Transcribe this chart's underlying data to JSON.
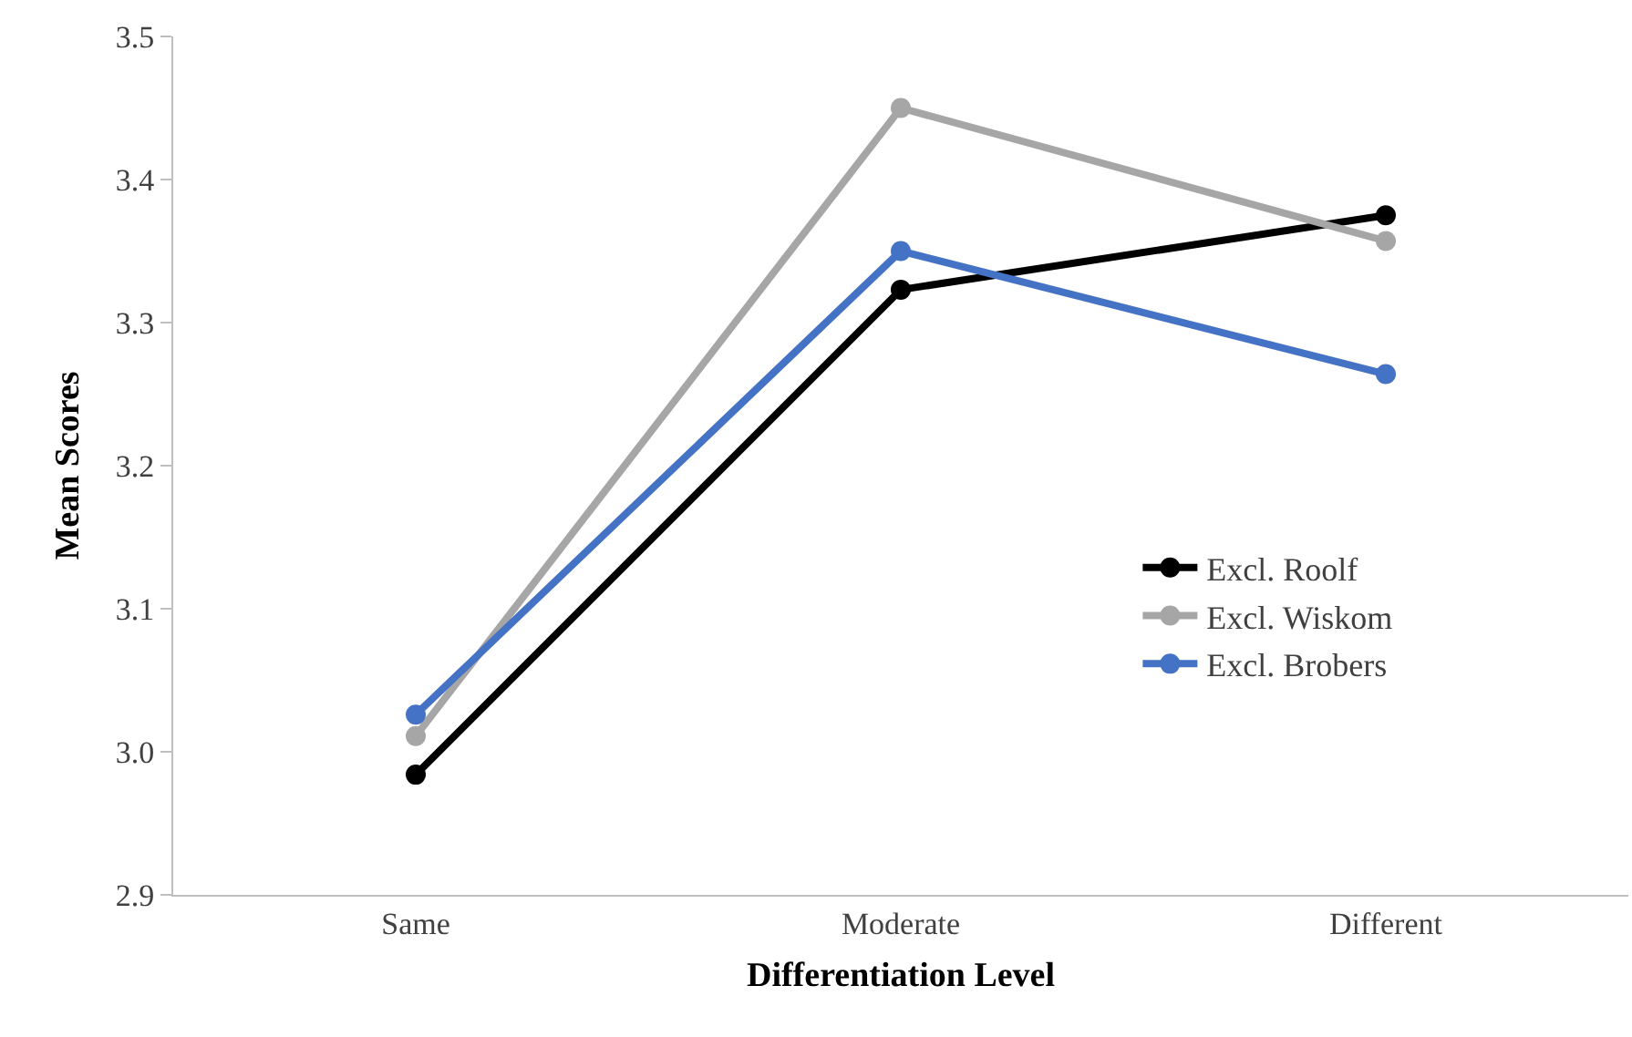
{
  "chart_data": {
    "type": "line",
    "xlabel": "Differentiation Level",
    "ylabel": "Mean Scores",
    "categories": [
      "Same",
      "Moderate",
      "Different"
    ],
    "series": [
      {
        "name": "Excl. Roolf",
        "color": "#000000",
        "values": [
          2.984,
          3.323,
          3.375
        ]
      },
      {
        "name": "Excl. Wiskom",
        "color": "#a6a6a6",
        "values": [
          3.011,
          3.45,
          3.357
        ]
      },
      {
        "name": "Excl. Brobers",
        "color": "#4472c4",
        "values": [
          3.026,
          3.35,
          3.264
        ]
      }
    ],
    "ylim": [
      2.9,
      3.5
    ],
    "yticks": [
      {
        "value": 2.9,
        "label": "2.9"
      },
      {
        "value": 3.0,
        "label": "3.0"
      },
      {
        "value": 3.1,
        "label": "3.1"
      },
      {
        "value": 3.2,
        "label": "3.2"
      },
      {
        "value": 3.3,
        "label": "3.3"
      },
      {
        "value": 3.4,
        "label": "3.4"
      },
      {
        "value": 3.5,
        "label": "3.5"
      }
    ],
    "grid": false,
    "legend": "right",
    "marker": "circle",
    "line_style": "solid"
  }
}
